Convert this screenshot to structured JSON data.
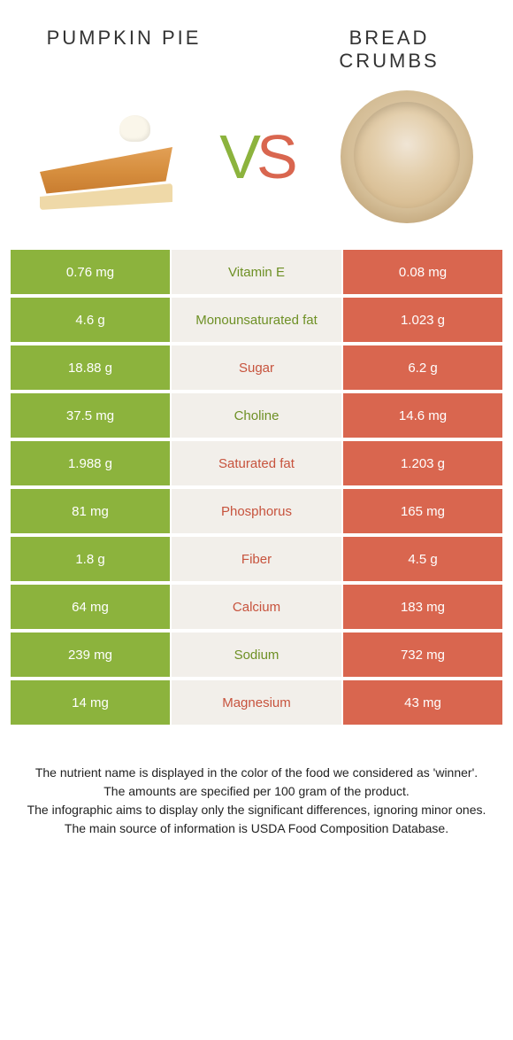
{
  "header": {
    "left_title": "PUMPKIN PIE",
    "right_title": "BREAD CRUMBS",
    "vs_v": "V",
    "vs_s": "S"
  },
  "colors": {
    "left_col": "#8cb33d",
    "right_col": "#d9664f",
    "mid_bg": "#f2efea",
    "label_green": "#6e9025",
    "label_orange": "#c7533d"
  },
  "rows": [
    {
      "label": "Vitamin E",
      "left": "0.76 mg",
      "right": "0.08 mg",
      "winner": "left"
    },
    {
      "label": "Monounsaturated fat",
      "left": "4.6 g",
      "right": "1.023 g",
      "winner": "left"
    },
    {
      "label": "Sugar",
      "left": "18.88 g",
      "right": "6.2 g",
      "winner": "right"
    },
    {
      "label": "Choline",
      "left": "37.5 mg",
      "right": "14.6 mg",
      "winner": "left"
    },
    {
      "label": "Saturated fat",
      "left": "1.988 g",
      "right": "1.203 g",
      "winner": "right"
    },
    {
      "label": "Phosphorus",
      "left": "81 mg",
      "right": "165 mg",
      "winner": "right"
    },
    {
      "label": "Fiber",
      "left": "1.8 g",
      "right": "4.5 g",
      "winner": "right"
    },
    {
      "label": "Calcium",
      "left": "64 mg",
      "right": "183 mg",
      "winner": "right"
    },
    {
      "label": "Sodium",
      "left": "239 mg",
      "right": "732 mg",
      "winner": "left"
    },
    {
      "label": "Magnesium",
      "left": "14 mg",
      "right": "43 mg",
      "winner": "right"
    }
  ],
  "footer": {
    "line1": "The nutrient name is displayed in the color of the food we considered as 'winner'.",
    "line2": "The amounts are specified per 100 gram of the product.",
    "line3": "The infographic aims to display only the significant differences, ignoring minor ones.",
    "line4": "The main source of information is USDA Food Composition Database."
  }
}
